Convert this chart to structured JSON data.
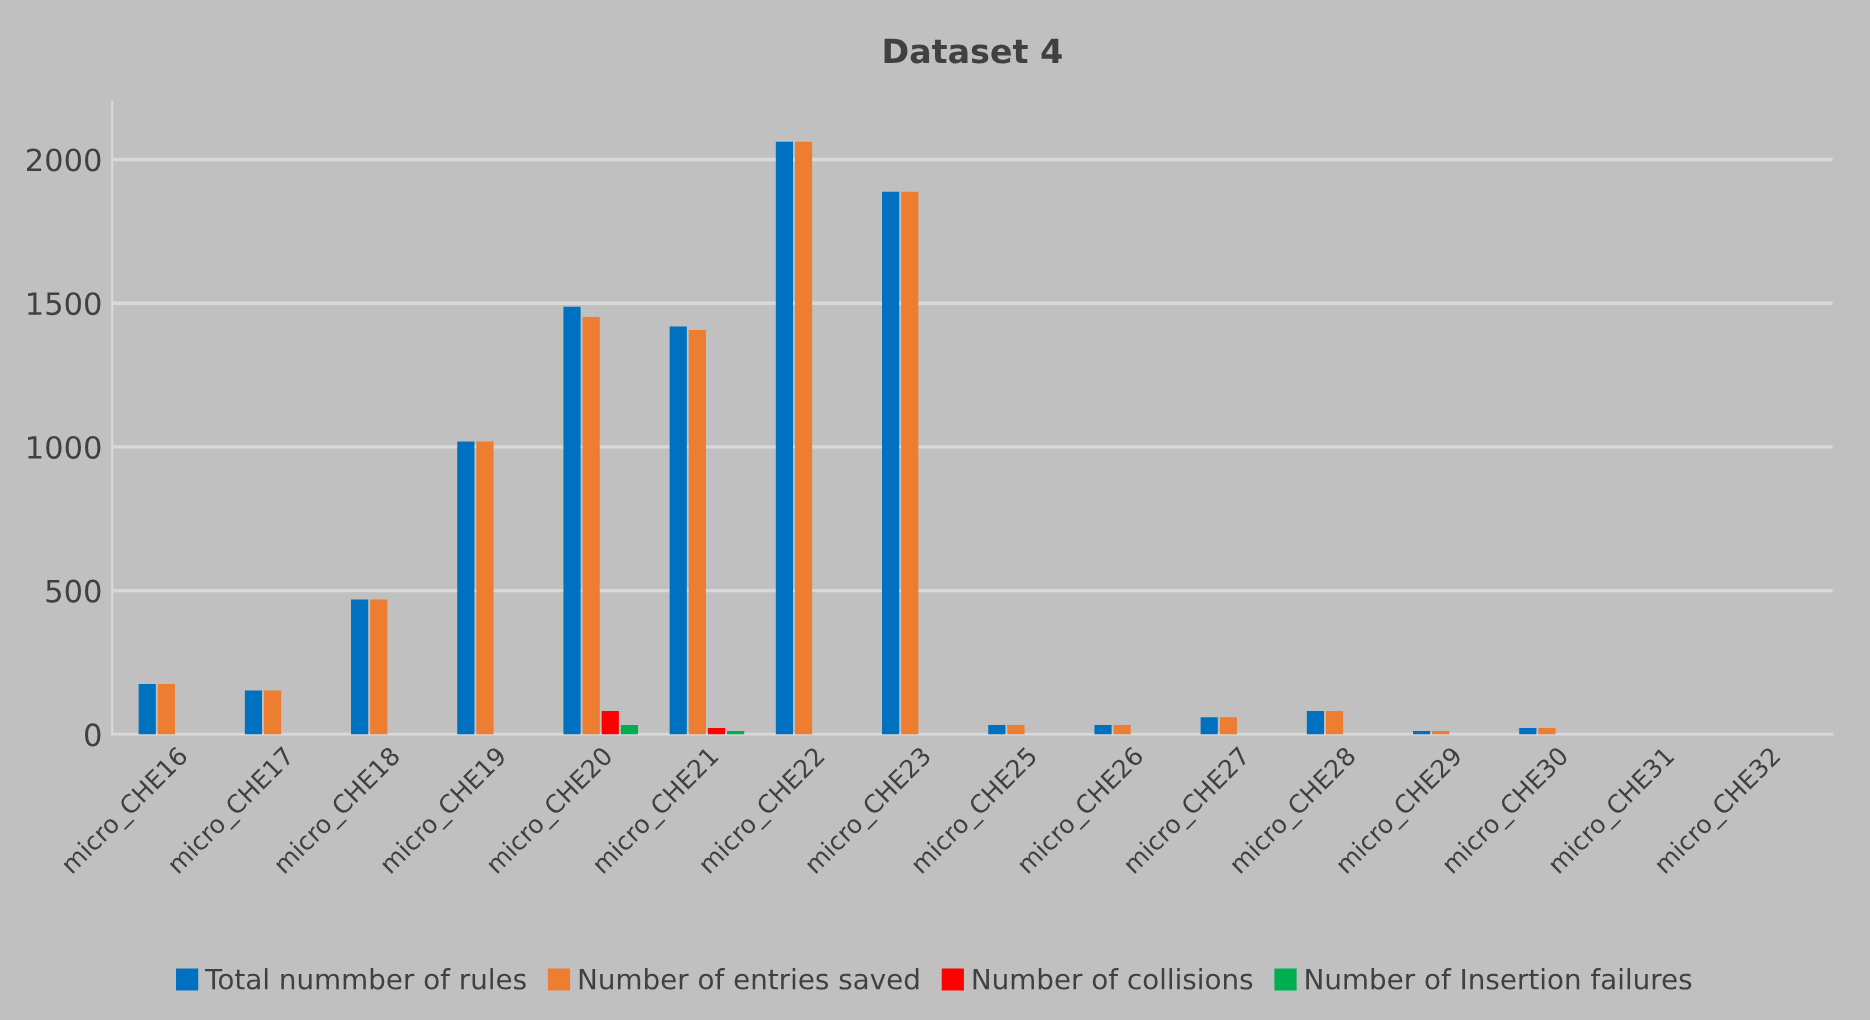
{
  "chart_data": {
    "type": "bar",
    "title": "Dataset 4",
    "categories": [
      "micro_CHE16",
      "micro_CHE17",
      "micro_CHE18",
      "micro_CHE19",
      "micro_CHE20",
      "micro_CHE21",
      "micro_CHE22",
      "micro_CHE23",
      "micro_CHE25",
      "micro_CHE26",
      "micro_CHE27",
      "micro_CHE28",
      "micro_CHE29",
      "micro_CHE30",
      "micro_CHE31",
      "micro_CHE32"
    ],
    "series": [
      {
        "name": "Total nummber of rules",
        "color": "#0070c0",
        "values": [
          175,
          153,
          469,
          1019,
          1488,
          1419,
          2062,
          1888,
          33,
          33,
          60,
          81,
          12,
          22,
          0,
          0
        ]
      },
      {
        "name": "Number of entries saved",
        "color": "#ed7d31",
        "values": [
          175,
          153,
          469,
          1019,
          1452,
          1407,
          2062,
          1888,
          33,
          33,
          60,
          81,
          12,
          22,
          0,
          0
        ]
      },
      {
        "name": "Number of collisions",
        "color": "#ff0000",
        "values": [
          0,
          0,
          0,
          0,
          81,
          22,
          0,
          0,
          0,
          0,
          0,
          0,
          0,
          0,
          0,
          0
        ]
      },
      {
        "name": "Number of Insertion failures",
        "color": "#00b050",
        "values": [
          0,
          0,
          0,
          0,
          33,
          12,
          0,
          0,
          0,
          0,
          0,
          0,
          0,
          0,
          0,
          0
        ]
      }
    ],
    "ylim": [
      0,
      2200
    ],
    "yticks": [
      0,
      500,
      1000,
      1500,
      2000
    ],
    "grid": "y",
    "legend": "bottom"
  }
}
